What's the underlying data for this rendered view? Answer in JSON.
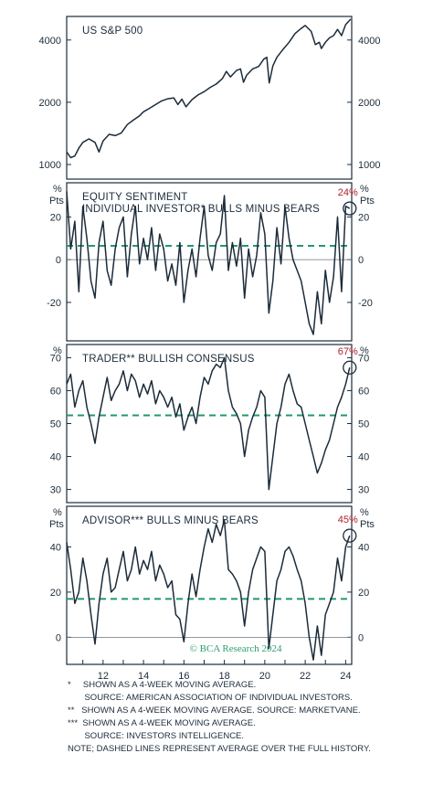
{
  "credit": "© BCA Research 2024",
  "notes": [
    "*     SHOWN AS A 4-WEEK MOVING AVERAGE.",
    "       SOURCE: AMERICAN ASSOCIATION OF INDIVIDUAL INVESTORS.",
    "**   SHOWN AS A 4-WEEK MOVING AVERAGE. SOURCE: MARKETVANE.",
    "***  SHOWN AS A 4-WEEK MOVING AVERAGE.",
    "       SOURCE: INVESTORS INTELLIGENCE.",
    "NOTE; DASHED LINES REPRESENT AVERAGE OVER THE FULL HISTORY."
  ],
  "colors": {
    "line": "#1c2b3a",
    "average": "#1f9a6a",
    "callout": "#b0202a",
    "credit": "#2e9e6e"
  },
  "chart_data": [
    {
      "type": "line",
      "title": "US S&P 500",
      "scale": "log",
      "ylim": [
        850,
        5200
      ],
      "yticks": [
        1000,
        2000,
        4000
      ],
      "ytick_labels": [
        "1000",
        "2000",
        "4000"
      ],
      "xlim": [
        2010.2,
        2024.3
      ],
      "series": [
        {
          "x": [
            2010.2,
            2010.4,
            2010.6,
            2010.8,
            2011.0,
            2011.3,
            2011.6,
            2011.8,
            2012.0,
            2012.3,
            2012.6,
            2012.9,
            2013.2,
            2013.5,
            2013.8,
            2014.0,
            2014.3,
            2014.6,
            2014.9,
            2015.2,
            2015.5,
            2015.7,
            2015.9,
            2016.1,
            2016.4,
            2016.7,
            2017.0,
            2017.3,
            2017.6,
            2017.9,
            2018.1,
            2018.3,
            2018.6,
            2018.8,
            2018.95,
            2019.1,
            2019.4,
            2019.7,
            2019.95,
            2020.1,
            2020.22,
            2020.4,
            2020.6,
            2020.9,
            2021.2,
            2021.5,
            2021.8,
            2022.0,
            2022.3,
            2022.5,
            2022.7,
            2022.8,
            2023.0,
            2023.2,
            2023.4,
            2023.6,
            2023.8,
            2024.0,
            2024.25
          ],
          "y": [
            1150,
            1080,
            1100,
            1200,
            1280,
            1330,
            1280,
            1150,
            1300,
            1400,
            1380,
            1420,
            1560,
            1640,
            1720,
            1800,
            1870,
            1950,
            2030,
            2080,
            2100,
            1950,
            2070,
            1900,
            2060,
            2170,
            2250,
            2360,
            2450,
            2600,
            2820,
            2650,
            2850,
            2900,
            2500,
            2700,
            2900,
            2980,
            3230,
            3300,
            2480,
            3000,
            3300,
            3600,
            3900,
            4300,
            4550,
            4700,
            4400,
            3800,
            3900,
            3640,
            3900,
            4100,
            4200,
            4500,
            4200,
            4750,
            5050
          ]
        }
      ]
    },
    {
      "type": "line",
      "title": "EQUITY SENTIMENT",
      "subtitle": "INDIVIDUAL INVESTOR* BULLS MINUS BEARS",
      "ylabel": "%",
      "ylabel2": "Pts",
      "ylim": [
        -38,
        36
      ],
      "yticks": [
        -20,
        0,
        20
      ],
      "ytick_labels": [
        "-20",
        "0",
        "20"
      ],
      "average": 6.5,
      "zero_line": true,
      "callout": "24%",
      "xlim": [
        2010.2,
        2024.3
      ],
      "series": [
        {
          "x": [
            2010.2,
            2010.4,
            2010.6,
            2010.8,
            2011.0,
            2011.2,
            2011.4,
            2011.6,
            2011.8,
            2012.0,
            2012.2,
            2012.4,
            2012.6,
            2012.8,
            2013.0,
            2013.2,
            2013.4,
            2013.6,
            2013.8,
            2014.0,
            2014.2,
            2014.4,
            2014.6,
            2014.8,
            2015.0,
            2015.2,
            2015.4,
            2015.6,
            2015.8,
            2016.0,
            2016.2,
            2016.4,
            2016.6,
            2016.8,
            2017.0,
            2017.2,
            2017.4,
            2017.6,
            2017.8,
            2018.0,
            2018.2,
            2018.4,
            2018.6,
            2018.8,
            2019.0,
            2019.2,
            2019.4,
            2019.6,
            2019.8,
            2020.0,
            2020.2,
            2020.4,
            2020.6,
            2020.8,
            2021.0,
            2021.2,
            2021.4,
            2021.6,
            2021.8,
            2022.0,
            2022.2,
            2022.4,
            2022.6,
            2022.8,
            2023.0,
            2023.2,
            2023.4,
            2023.6,
            2023.8,
            2024.0,
            2024.2
          ],
          "y": [
            32,
            5,
            18,
            -15,
            25,
            10,
            -10,
            -18,
            8,
            18,
            -5,
            -12,
            5,
            15,
            20,
            -8,
            12,
            25,
            -2,
            10,
            0,
            15,
            -5,
            12,
            5,
            -10,
            -2,
            -12,
            8,
            -20,
            -5,
            5,
            -8,
            10,
            25,
            2,
            -5,
            8,
            12,
            30,
            -5,
            8,
            -3,
            10,
            -18,
            5,
            -8,
            2,
            22,
            12,
            -25,
            -10,
            15,
            -2,
            25,
            10,
            0,
            -5,
            -10,
            -20,
            -30,
            -35,
            -15,
            -30,
            -5,
            -20,
            -8,
            20,
            -15,
            25,
            24
          ]
        }
      ]
    },
    {
      "type": "line",
      "title": "TRADER** BULLISH CONSENSUS",
      "ylabel": "%",
      "ylim": [
        26,
        74
      ],
      "yticks": [
        30,
        40,
        50,
        60,
        70
      ],
      "ytick_labels": [
        "30",
        "40",
        "50",
        "60",
        "70"
      ],
      "average": 52.5,
      "callout": "67%",
      "xlim": [
        2010.2,
        2024.3
      ],
      "series": [
        {
          "x": [
            2010.2,
            2010.4,
            2010.6,
            2010.8,
            2011.0,
            2011.2,
            2011.4,
            2011.6,
            2011.8,
            2012.0,
            2012.2,
            2012.4,
            2012.6,
            2012.8,
            2013.0,
            2013.2,
            2013.4,
            2013.6,
            2013.8,
            2014.0,
            2014.2,
            2014.4,
            2014.6,
            2014.8,
            2015.0,
            2015.2,
            2015.4,
            2015.6,
            2015.8,
            2016.0,
            2016.2,
            2016.4,
            2016.6,
            2016.8,
            2017.0,
            2017.2,
            2017.4,
            2017.6,
            2017.8,
            2018.0,
            2018.2,
            2018.4,
            2018.6,
            2018.8,
            2019.0,
            2019.2,
            2019.4,
            2019.6,
            2019.8,
            2020.0,
            2020.2,
            2020.4,
            2020.6,
            2020.8,
            2021.0,
            2021.2,
            2021.4,
            2021.6,
            2021.8,
            2022.0,
            2022.2,
            2022.4,
            2022.6,
            2022.8,
            2023.0,
            2023.2,
            2023.4,
            2023.6,
            2023.8,
            2024.0,
            2024.2
          ],
          "y": [
            62,
            65,
            55,
            60,
            63,
            55,
            50,
            44,
            52,
            58,
            64,
            57,
            60,
            62,
            66,
            60,
            65,
            63,
            58,
            62,
            59,
            63,
            56,
            60,
            58,
            55,
            58,
            52,
            56,
            48,
            52,
            55,
            50,
            58,
            64,
            62,
            66,
            68,
            67,
            70,
            60,
            55,
            53,
            50,
            40,
            48,
            52,
            55,
            60,
            58,
            30,
            40,
            50,
            55,
            62,
            65,
            60,
            56,
            55,
            50,
            45,
            40,
            35,
            38,
            42,
            45,
            50,
            55,
            58,
            62,
            67
          ]
        }
      ]
    },
    {
      "type": "line",
      "title": "ADVISOR*** BULLS MINUS BEARS",
      "ylabel": "%",
      "ylabel2": "Pts",
      "ylim": [
        -12,
        58
      ],
      "yticks": [
        0,
        20,
        40
      ],
      "ytick_labels": [
        "0",
        "20",
        "40"
      ],
      "average": 17,
      "zero_line": true,
      "callout": "45%",
      "xlim": [
        2010.2,
        2024.3
      ],
      "series": [
        {
          "x": [
            2010.2,
            2010.4,
            2010.6,
            2010.8,
            2011.0,
            2011.2,
            2011.4,
            2011.6,
            2011.8,
            2012.0,
            2012.2,
            2012.4,
            2012.6,
            2012.8,
            2013.0,
            2013.2,
            2013.4,
            2013.6,
            2013.8,
            2014.0,
            2014.2,
            2014.4,
            2014.6,
            2014.8,
            2015.0,
            2015.2,
            2015.4,
            2015.6,
            2015.8,
            2016.0,
            2016.2,
            2016.4,
            2016.6,
            2016.8,
            2017.0,
            2017.2,
            2017.4,
            2017.6,
            2017.8,
            2018.0,
            2018.2,
            2018.4,
            2018.6,
            2018.8,
            2019.0,
            2019.2,
            2019.4,
            2019.6,
            2019.8,
            2020.0,
            2020.2,
            2020.4,
            2020.6,
            2020.8,
            2021.0,
            2021.2,
            2021.4,
            2021.6,
            2021.8,
            2022.0,
            2022.2,
            2022.4,
            2022.6,
            2022.8,
            2023.0,
            2023.2,
            2023.4,
            2023.6,
            2023.8,
            2024.0,
            2024.2
          ],
          "y": [
            42,
            30,
            15,
            20,
            35,
            25,
            10,
            -3,
            15,
            28,
            35,
            20,
            22,
            30,
            38,
            25,
            30,
            40,
            28,
            34,
            30,
            38,
            25,
            32,
            28,
            22,
            25,
            10,
            8,
            -2,
            15,
            28,
            18,
            30,
            40,
            48,
            42,
            50,
            45,
            52,
            30,
            28,
            25,
            20,
            5,
            20,
            30,
            35,
            40,
            38,
            -5,
            10,
            25,
            30,
            38,
            40,
            36,
            30,
            25,
            15,
            0,
            -10,
            5,
            -8,
            10,
            15,
            20,
            35,
            25,
            40,
            45
          ]
        }
      ]
    }
  ],
  "x_axis": {
    "tick_labels": [
      "12",
      "14",
      "16",
      "18",
      "20",
      "22",
      "24"
    ],
    "tick_years": [
      2012,
      2014,
      2016,
      2018,
      2020,
      2022,
      2024
    ]
  }
}
